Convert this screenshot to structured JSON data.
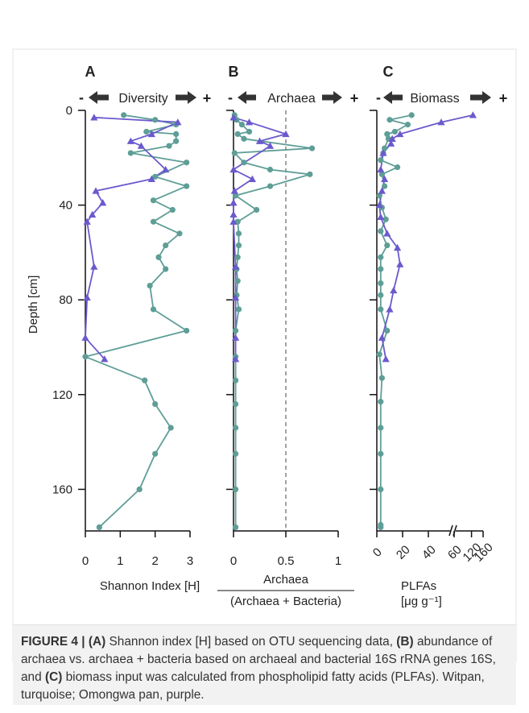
{
  "colors": {
    "witpan": "#5e9e96",
    "omongwa": "#6a5acd",
    "axis": "#111111",
    "arrow": "#333333"
  },
  "depth_axis": {
    "label": "Depth [cm]",
    "ticks": [
      0,
      40,
      80,
      120,
      160
    ],
    "lim": [
      0,
      178
    ]
  },
  "legend": {
    "witpan": "Witpan",
    "omongwa": "Omongwa pan"
  },
  "chart_data": [
    {
      "type": "line",
      "panel": "A",
      "header": "Diversity",
      "minus": "-",
      "plus": "+",
      "xlabel": "Shannon Index [H]",
      "xticks": [
        0,
        1,
        2,
        3
      ],
      "xlim": [
        0,
        3
      ],
      "ylim": [
        0,
        178
      ],
      "series": [
        {
          "name": "Witpan",
          "x": [
            1.1,
            2.0,
            2.6,
            1.75,
            2.6,
            2.6,
            2.4,
            1.3,
            2.9,
            2.0,
            2.9,
            1.95,
            2.5,
            1.95,
            2.7,
            2.3,
            2.1,
            2.3,
            1.85,
            1.95,
            2.9,
            0.0,
            1.7,
            2.0,
            2.45,
            2.0,
            1.55,
            0.4
          ],
          "y": [
            2,
            4,
            6,
            9,
            10,
            13,
            15,
            18,
            22,
            28,
            32,
            38,
            42,
            47,
            52,
            57,
            62,
            67,
            74,
            84,
            93,
            104,
            114,
            124,
            134,
            145,
            160,
            176
          ]
        },
        {
          "name": "Omongwa pan",
          "x": [
            0.25,
            2.65,
            1.9,
            1.3,
            1.6,
            2.3,
            1.9,
            0.3,
            0.5,
            0.2,
            0.05,
            0.25,
            0.05,
            0.0,
            0.55
          ],
          "y": [
            3,
            5,
            10,
            13,
            15,
            25,
            29,
            34,
            39,
            44,
            47,
            66,
            79,
            96,
            105
          ]
        }
      ]
    },
    {
      "type": "line",
      "panel": "B",
      "header": "Archaea",
      "minus": "-",
      "plus": "+",
      "xlabel": "Archaea",
      "xlabel_denominator": "(Archaea + Bacteria)",
      "xticks": [
        0,
        0.5,
        1
      ],
      "tick_labels": [
        "0",
        "0.5",
        "1"
      ],
      "reference_line_x": 0.5,
      "xlim": [
        0,
        1
      ],
      "ylim": [
        0,
        178
      ],
      "series": [
        {
          "name": "Witpan",
          "x": [
            0.01,
            0.03,
            0.08,
            0.15,
            0.04,
            0.1,
            0.75,
            0.01,
            0.1,
            0.35,
            0.73,
            0.35,
            0.02,
            0.22,
            0.04,
            0.05,
            0.05,
            0.04,
            0.03,
            0.04,
            0.03,
            0.05,
            0.02,
            0.02,
            0.02,
            0.02,
            0.02,
            0.02,
            0.02,
            0.02
          ],
          "y": [
            2,
            4,
            6,
            9,
            10,
            12,
            16,
            18,
            22,
            25,
            27,
            32,
            36,
            42,
            47,
            52,
            57,
            62,
            67,
            72,
            78,
            84,
            93,
            104,
            114,
            124,
            134,
            145,
            160,
            176
          ]
        },
        {
          "name": "Omongwa pan",
          "x": [
            0.0,
            0.15,
            0.5,
            0.25,
            0.35,
            0.0,
            0.18,
            0.01,
            0.0,
            0.0,
            0.0,
            0.02,
            0.02,
            0.02,
            0.02
          ],
          "y": [
            3,
            5,
            10,
            13,
            15,
            25,
            29,
            34,
            39,
            44,
            47,
            66,
            79,
            96,
            105
          ]
        }
      ]
    },
    {
      "type": "line",
      "panel": "C",
      "header": "Biomass",
      "minus": "-",
      "plus": "+",
      "xlabel": "PLFAs",
      "xlabel_units": "[μg g⁻¹]",
      "xticks": [
        0,
        20,
        40,
        60,
        120,
        160
      ],
      "axis_break": [
        60,
        120
      ],
      "xlim": [
        0,
        160
      ],
      "ylim": [
        0,
        178
      ],
      "series": [
        {
          "name": "Witpan",
          "x": [
            27,
            10,
            24,
            14,
            8,
            9,
            6,
            5,
            3,
            16,
            4,
            6,
            2,
            4,
            7,
            3,
            8,
            3,
            3,
            3,
            3,
            3,
            8,
            2,
            4,
            3,
            3,
            3,
            3,
            3,
            3
          ],
          "y": [
            2,
            4,
            6,
            9,
            10,
            12,
            16,
            18,
            21,
            24,
            27,
            32,
            36,
            41,
            46,
            51,
            57,
            62,
            67,
            73,
            78,
            84,
            93,
            103,
            113,
            123,
            134,
            145,
            160,
            175,
            176
          ]
        },
        {
          "name": "Omongwa pan",
          "x": [
            125,
            50,
            18,
            12,
            11,
            5,
            3,
            6,
            4,
            2,
            3,
            8,
            16,
            18,
            13,
            10,
            4,
            7
          ],
          "y": [
            2,
            5,
            10,
            12,
            14,
            18,
            25,
            29,
            34,
            40,
            45,
            52,
            58,
            65,
            76,
            84,
            96,
            105
          ]
        }
      ]
    }
  ],
  "caption": {
    "figure_label": "FIGURE 4 |",
    "part_a_label": "(A)",
    "part_a_text": "Shannon index [H] based on OTU sequencing data,",
    "part_b_label": "(B)",
    "part_b_text": "abundance of archaea vs. archaea + bacteria based on archaeal and bacterial 16S rRNA genes 16S, and",
    "part_c_label": "(C)",
    "part_c_text": "biomass input was calculated from phospholipid fatty acids (PLFAs). Witpan, turquoise; Omongwa pan, purple."
  }
}
